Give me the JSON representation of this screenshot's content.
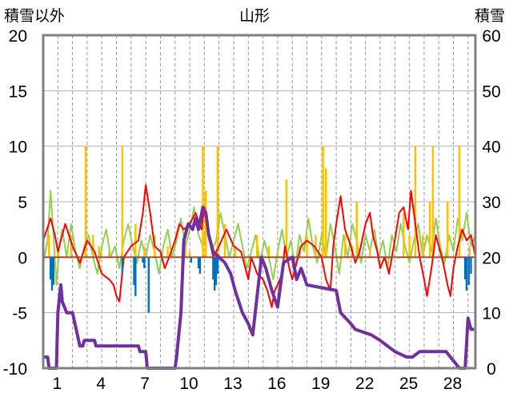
{
  "chart_data": {
    "type": "line",
    "title": "山形",
    "left_axis_label": "積雪以外",
    "right_axis_label": "積雪",
    "y_left": {
      "min": -10,
      "max": 20,
      "ticks": [
        "20",
        "15",
        "10",
        "5",
        "0",
        "-5",
        "-10"
      ]
    },
    "y_right": {
      "min": 0,
      "max": 60,
      "ticks": [
        "60",
        "50",
        "40",
        "30",
        "20",
        "10",
        "0"
      ]
    },
    "x": {
      "min": 0,
      "max": 29.5,
      "ticks": [
        1,
        4,
        7,
        10,
        13,
        16,
        19,
        22,
        25,
        28
      ],
      "tick_labels": [
        "1",
        "4",
        "7",
        "10",
        "13",
        "16",
        "19",
        "22",
        "25",
        "28"
      ]
    },
    "grid": "horizontal solid gray every 5 units; vertical dashed gray every day",
    "colors": {
      "temperature": "#ff0000",
      "wind": "#92d050",
      "precipitation": "#ffc000",
      "temp_change": "#0070c0",
      "snow_depth": "#7030a0"
    },
    "series": [
      {
        "key": "temperature",
        "axis": "left",
        "style": "line",
        "points": [
          [
            0,
            1.5
          ],
          [
            0.5,
            3.5
          ],
          [
            0.8,
            2
          ],
          [
            1,
            0.5
          ],
          [
            1.5,
            3
          ],
          [
            2,
            1
          ],
          [
            2.5,
            -0.5
          ],
          [
            3,
            1.5
          ],
          [
            3.5,
            0.5
          ],
          [
            4,
            -1.5
          ],
          [
            4.5,
            -2
          ],
          [
            4.8,
            -2.5
          ],
          [
            5,
            -3.5
          ],
          [
            5.2,
            -4
          ],
          [
            5.5,
            0
          ],
          [
            6,
            1
          ],
          [
            6.5,
            1.5
          ],
          [
            6.8,
            4
          ],
          [
            7,
            6.5
          ],
          [
            7.3,
            4
          ],
          [
            7.6,
            1
          ],
          [
            8,
            0.5
          ],
          [
            8.3,
            -1
          ],
          [
            8.6,
            0
          ],
          [
            9,
            1.5
          ],
          [
            9.3,
            3
          ],
          [
            9.6,
            2.5
          ],
          [
            10,
            3
          ],
          [
            10.4,
            4
          ],
          [
            10.8,
            2.5
          ],
          [
            11,
            4.5
          ],
          [
            11.3,
            2
          ],
          [
            11.6,
            0
          ],
          [
            12,
            1
          ],
          [
            12.5,
            2.5
          ],
          [
            13,
            1
          ],
          [
            13.5,
            0.5
          ],
          [
            13.8,
            -1
          ],
          [
            14,
            -2
          ],
          [
            14.2,
            0
          ],
          [
            14.6,
            -1.5
          ],
          [
            15,
            -2
          ],
          [
            15.3,
            -3
          ],
          [
            15.6,
            -4.5
          ],
          [
            15.8,
            -3
          ],
          [
            16,
            -2.5
          ],
          [
            16.3,
            -1.5
          ],
          [
            16.5,
            1
          ],
          [
            16.8,
            -1
          ],
          [
            17,
            -2
          ],
          [
            17.3,
            -0.5
          ],
          [
            17.6,
            1
          ],
          [
            18,
            1.5
          ],
          [
            18.5,
            1
          ],
          [
            19,
            0
          ],
          [
            19.3,
            -2
          ],
          [
            19.6,
            -3
          ],
          [
            19.8,
            1
          ],
          [
            20,
            3
          ],
          [
            20.3,
            5.5
          ],
          [
            20.6,
            2.5
          ],
          [
            21,
            1
          ],
          [
            21.3,
            -0.5
          ],
          [
            21.6,
            0.5
          ],
          [
            22,
            3
          ],
          [
            22.3,
            4
          ],
          [
            22.5,
            2
          ],
          [
            22.8,
            0.5
          ],
          [
            23,
            -1
          ],
          [
            23.3,
            0
          ],
          [
            23.6,
            -1.5
          ],
          [
            24,
            1.5
          ],
          [
            24.3,
            4
          ],
          [
            24.6,
            4.5
          ],
          [
            24.9,
            2.5
          ],
          [
            25.1,
            6
          ],
          [
            25.4,
            3
          ],
          [
            25.7,
            0
          ],
          [
            26,
            -2
          ],
          [
            26.2,
            -3.5
          ],
          [
            26.5,
            -1
          ],
          [
            26.8,
            2
          ],
          [
            27,
            1
          ],
          [
            27.3,
            -0.5
          ],
          [
            27.6,
            -2.5
          ],
          [
            27.8,
            -3.5
          ],
          [
            28,
            -1
          ],
          [
            28.3,
            1
          ],
          [
            28.6,
            2.5
          ],
          [
            28.9,
            1.5
          ],
          [
            29.2,
            2
          ],
          [
            29.5,
            0
          ]
        ]
      },
      {
        "key": "wind",
        "axis": "left",
        "style": "line",
        "points": [
          [
            0,
            -0.5
          ],
          [
            0.3,
            1.5
          ],
          [
            0.5,
            6
          ],
          [
            0.7,
            2
          ],
          [
            0.9,
            -2.5
          ],
          [
            1.1,
            1
          ],
          [
            1.3,
            2.5
          ],
          [
            1.6,
            0
          ],
          [
            1.9,
            3
          ],
          [
            2.2,
            0.5
          ],
          [
            2.5,
            -1
          ],
          [
            2.8,
            1
          ],
          [
            3.1,
            2
          ],
          [
            3.4,
            0
          ],
          [
            3.7,
            -1.5
          ],
          [
            4,
            1
          ],
          [
            4.3,
            2.5
          ],
          [
            4.6,
            0
          ],
          [
            4.9,
            1
          ],
          [
            5.2,
            -1
          ],
          [
            5.5,
            1.5
          ],
          [
            5.8,
            3
          ],
          [
            6.1,
            1
          ],
          [
            6.4,
            -0.5
          ],
          [
            6.7,
            1.5
          ],
          [
            7,
            0
          ],
          [
            7.3,
            2
          ],
          [
            7.6,
            0.5
          ],
          [
            7.9,
            -1.5
          ],
          [
            8.2,
            1
          ],
          [
            8.5,
            2.5
          ],
          [
            8.8,
            0
          ],
          [
            9.1,
            1.5
          ],
          [
            9.4,
            3.5
          ],
          [
            9.7,
            1
          ],
          [
            10,
            2.5
          ],
          [
            10.3,
            4.5
          ],
          [
            10.6,
            2
          ],
          [
            10.9,
            1
          ],
          [
            11.2,
            3
          ],
          [
            11.5,
            0.5
          ],
          [
            11.8,
            1.5
          ],
          [
            12.1,
            4
          ],
          [
            12.4,
            2
          ],
          [
            12.7,
            0
          ],
          [
            13,
            1.5
          ],
          [
            13.3,
            3
          ],
          [
            13.6,
            1
          ],
          [
            13.9,
            -1
          ],
          [
            14.2,
            0.5
          ],
          [
            14.5,
            2
          ],
          [
            14.8,
            -0.5
          ],
          [
            15.1,
            1.5
          ],
          [
            15.4,
            0
          ],
          [
            15.7,
            -2
          ],
          [
            16,
            0.5
          ],
          [
            16.3,
            2.5
          ],
          [
            16.6,
            0
          ],
          [
            16.9,
            1.5
          ],
          [
            17.2,
            -1
          ],
          [
            17.5,
            2
          ],
          [
            17.8,
            0.5
          ],
          [
            18.1,
            3.5
          ],
          [
            18.4,
            1
          ],
          [
            18.7,
            -0.5
          ],
          [
            19,
            2
          ],
          [
            19.3,
            0
          ],
          [
            19.6,
            3
          ],
          [
            19.9,
            1
          ],
          [
            20.2,
            -1.5
          ],
          [
            20.5,
            2
          ],
          [
            20.8,
            0
          ],
          [
            21.1,
            3
          ],
          [
            21.4,
            1.5
          ],
          [
            21.7,
            -0.5
          ],
          [
            22,
            2
          ],
          [
            22.3,
            0.5
          ],
          [
            22.6,
            2.5
          ],
          [
            22.9,
            0
          ],
          [
            23.2,
            1.5
          ],
          [
            23.5,
            -1
          ],
          [
            23.8,
            2
          ],
          [
            24.1,
            0.5
          ],
          [
            24.4,
            3
          ],
          [
            24.7,
            1
          ],
          [
            25,
            -0.5
          ],
          [
            25.3,
            1.5
          ],
          [
            25.6,
            3
          ],
          [
            25.9,
            0
          ],
          [
            26.2,
            2
          ],
          [
            26.5,
            0.5
          ],
          [
            26.8,
            3.5
          ],
          [
            27.1,
            1
          ],
          [
            27.4,
            -0.5
          ],
          [
            27.7,
            2
          ],
          [
            28,
            0.5
          ],
          [
            28.3,
            3.5
          ],
          [
            28.6,
            1.5
          ],
          [
            28.9,
            4
          ],
          [
            29.2,
            1
          ],
          [
            29.5,
            2
          ]
        ]
      },
      {
        "key": "precipitation",
        "axis": "left",
        "style": "spikes",
        "points": [
          [
            0.4,
            2
          ],
          [
            1,
            0.5
          ],
          [
            1.9,
            2
          ],
          [
            2.9,
            10
          ],
          [
            3.4,
            2
          ],
          [
            3.8,
            1
          ],
          [
            4.5,
            0.5
          ],
          [
            5.4,
            10
          ],
          [
            6.3,
            3
          ],
          [
            6.9,
            1
          ],
          [
            7.6,
            2
          ],
          [
            8.5,
            1
          ],
          [
            9.7,
            1
          ],
          [
            10,
            0.5
          ],
          [
            10.9,
            10
          ],
          [
            11.1,
            6
          ],
          [
            11.9,
            10
          ],
          [
            12.4,
            3
          ],
          [
            13.1,
            1
          ],
          [
            14.6,
            2
          ],
          [
            15.4,
            1
          ],
          [
            16,
            0.5
          ],
          [
            16.6,
            7
          ],
          [
            17.5,
            1
          ],
          [
            18,
            2
          ],
          [
            18.6,
            2
          ],
          [
            19.1,
            10
          ],
          [
            19.3,
            8
          ],
          [
            20.6,
            2
          ],
          [
            21.1,
            1
          ],
          [
            21.4,
            5
          ],
          [
            22.3,
            1
          ],
          [
            24.6,
            4
          ],
          [
            25,
            2
          ],
          [
            25.4,
            10
          ],
          [
            25.9,
            2
          ],
          [
            26.4,
            5
          ],
          [
            26.6,
            10
          ],
          [
            27.6,
            5
          ],
          [
            28.4,
            10
          ],
          [
            29.1,
            1
          ]
        ]
      },
      {
        "key": "temp_change",
        "axis": "left",
        "style": "bars",
        "points": [
          [
            0.5,
            -2
          ],
          [
            0.6,
            -3
          ],
          [
            0.7,
            -2.5
          ],
          [
            5.4,
            -1.5
          ],
          [
            6.2,
            -2.5
          ],
          [
            6.3,
            -3.5
          ],
          [
            6.8,
            -0.5
          ],
          [
            6.9,
            -1
          ],
          [
            7.2,
            -5
          ],
          [
            10.1,
            -0.5
          ],
          [
            10.6,
            -1
          ],
          [
            10.7,
            -1.5
          ],
          [
            11.6,
            -2
          ],
          [
            11.7,
            -3
          ],
          [
            11.8,
            -2.5
          ],
          [
            11.9,
            -1.5
          ],
          [
            17.1,
            -0.5
          ],
          [
            28.8,
            -2
          ],
          [
            28.9,
            -3
          ],
          [
            29.05,
            -2.5
          ],
          [
            29.2,
            -1.5
          ]
        ]
      },
      {
        "key": "snow_depth",
        "axis": "right",
        "style": "line",
        "points": [
          [
            0,
            2
          ],
          [
            0.3,
            2
          ],
          [
            0.4,
            0
          ],
          [
            0.9,
            0
          ],
          [
            1,
            10
          ],
          [
            1.2,
            15
          ],
          [
            1.3,
            12
          ],
          [
            1.6,
            10
          ],
          [
            2,
            10
          ],
          [
            2.5,
            4
          ],
          [
            2.7,
            4
          ],
          [
            2.8,
            5
          ],
          [
            3.5,
            5
          ],
          [
            3.6,
            4
          ],
          [
            6.5,
            4
          ],
          [
            6.6,
            3
          ],
          [
            7,
            3
          ],
          [
            7.1,
            0
          ],
          [
            9,
            0
          ],
          [
            9.1,
            2
          ],
          [
            9.4,
            10
          ],
          [
            9.6,
            23
          ],
          [
            9.9,
            26
          ],
          [
            10.2,
            25
          ],
          [
            10.4,
            27
          ],
          [
            10.6,
            25
          ],
          [
            10.9,
            29
          ],
          [
            11.1,
            28
          ],
          [
            11.3,
            24
          ],
          [
            11.6,
            21
          ],
          [
            12,
            20
          ],
          [
            12.4,
            19
          ],
          [
            12.8,
            17
          ],
          [
            13.1,
            14
          ],
          [
            13.6,
            10
          ],
          [
            14,
            8
          ],
          [
            14.3,
            6
          ],
          [
            14.9,
            20
          ],
          [
            15.2,
            18
          ],
          [
            15.6,
            14
          ],
          [
            16,
            11
          ],
          [
            16.4,
            19
          ],
          [
            17,
            20
          ],
          [
            17.3,
            16
          ],
          [
            17.6,
            18
          ],
          [
            18,
            15
          ],
          [
            20,
            14
          ],
          [
            20.3,
            10
          ],
          [
            21,
            8
          ],
          [
            21.3,
            7
          ],
          [
            22.4,
            6
          ],
          [
            23,
            5
          ],
          [
            23.5,
            4
          ],
          [
            24,
            3
          ],
          [
            24.8,
            2
          ],
          [
            25.2,
            2
          ],
          [
            25.7,
            3
          ],
          [
            27.5,
            3
          ],
          [
            28.4,
            0
          ],
          [
            28.8,
            0
          ],
          [
            29,
            9
          ],
          [
            29.2,
            7
          ],
          [
            29.4,
            7
          ]
        ]
      }
    ]
  }
}
